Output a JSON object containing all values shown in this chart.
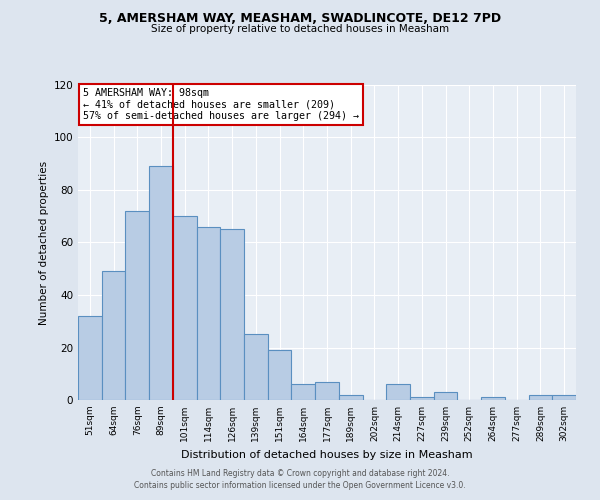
{
  "title1": "5, AMERSHAM WAY, MEASHAM, SWADLINCOTE, DE12 7PD",
  "title2": "Size of property relative to detached houses in Measham",
  "xlabel": "Distribution of detached houses by size in Measham",
  "ylabel": "Number of detached properties",
  "categories": [
    "51sqm",
    "64sqm",
    "76sqm",
    "89sqm",
    "101sqm",
    "114sqm",
    "126sqm",
    "139sqm",
    "151sqm",
    "164sqm",
    "177sqm",
    "189sqm",
    "202sqm",
    "214sqm",
    "227sqm",
    "239sqm",
    "252sqm",
    "264sqm",
    "277sqm",
    "289sqm",
    "302sqm"
  ],
  "values": [
    32,
    49,
    72,
    89,
    70,
    66,
    65,
    25,
    19,
    6,
    7,
    2,
    0,
    6,
    1,
    3,
    0,
    1,
    0,
    2,
    2
  ],
  "bar_color": "#b8cce4",
  "bar_edge_color": "#5a8fc0",
  "vline_color": "#cc0000",
  "annotation_line1": "5 AMERSHAM WAY: 98sqm",
  "annotation_line2": "← 41% of detached houses are smaller (209)",
  "annotation_line3": "57% of semi-detached houses are larger (294) →",
  "annotation_box_color": "#cc0000",
  "ylim": [
    0,
    120
  ],
  "yticks": [
    0,
    20,
    40,
    60,
    80,
    100,
    120
  ],
  "footer1": "Contains HM Land Registry data © Crown copyright and database right 2024.",
  "footer2": "Contains public sector information licensed under the Open Government Licence v3.0.",
  "background_color": "#dde5ef",
  "plot_bg_color": "#e8eef5"
}
